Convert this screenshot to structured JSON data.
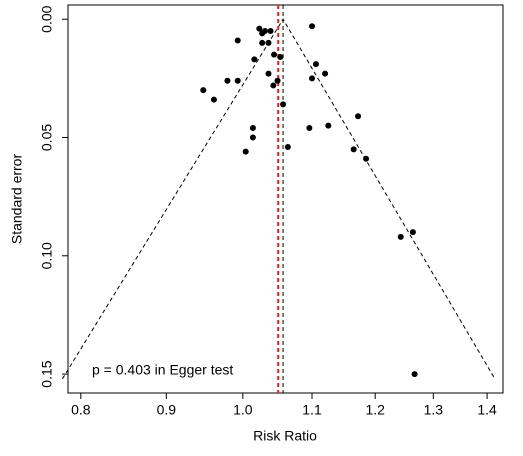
{
  "chart_data": {
    "type": "scatter",
    "x_label": "Risk Ratio",
    "y_label": "Standard error",
    "annotation": "p = 0.403 in Egger test",
    "x_log": true,
    "y_reversed": true,
    "xlim": [
      0.786,
      1.431
    ],
    "ylim": [
      -0.006,
      0.158
    ],
    "xticks": [
      0.8,
      0.9,
      {
        "value": 1,
        "label": "1.0"
      },
      1.1,
      1.2,
      1.3,
      1.4
    ],
    "yticks": [
      {
        "value": 0,
        "label": "0.00"
      },
      {
        "value": 0.05,
        "label": "0.05"
      },
      {
        "value": 0.1,
        "label": "0.10"
      },
      {
        "value": 0.15,
        "label": "0.15"
      }
    ],
    "color": "#000000",
    "x": [
      1.023,
      1.031,
      1.027,
      1.039,
      1.1,
      0.993,
      1.027,
      1.036,
      1.016,
      1.044,
      1.053,
      1.106,
      1.12,
      1.036,
      1.049,
      1.043,
      1.1,
      0.979,
      0.993,
      0.947,
      0.961,
      1.057,
      1.172,
      1.014,
      1.096,
      1.125,
      1.014,
      1.064,
      1.004,
      1.165,
      1.185,
      1.243,
      1.264,
      1.267
    ],
    "values": [
      0.004,
      0.005,
      0.006,
      0.005,
      0.003,
      0.009,
      0.01,
      0.01,
      0.017,
      0.015,
      0.016,
      0.019,
      0.023,
      0.023,
      0.026,
      0.028,
      0.025,
      0.026,
      0.026,
      0.03,
      0.034,
      0.036,
      0.041,
      0.046,
      0.046,
      0.045,
      0.05,
      0.054,
      0.056,
      0.055,
      0.059,
      0.092,
      0.09,
      0.15
    ],
    "pooled_estimate": {
      "x": 1.05,
      "color": "#e0201b"
    },
    "funnel_center": {
      "x": 1.057,
      "color": "#000000"
    },
    "funnel": {
      "x": [
        0.78,
        1.057,
        1.415
      ],
      "y": [
        0.152,
        0,
        0.152
      ],
      "color": "#000000"
    }
  }
}
